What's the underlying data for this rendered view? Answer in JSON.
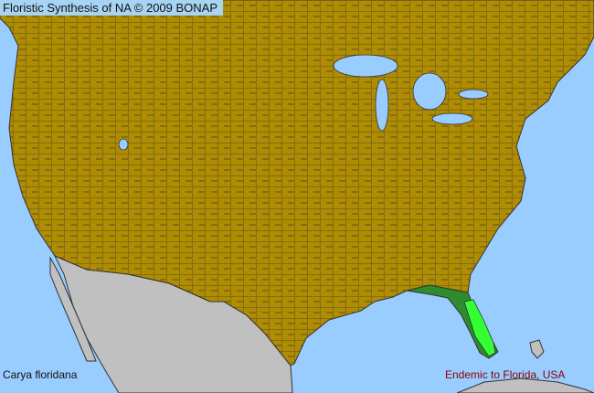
{
  "map": {
    "credit": "Floristic Synthesis of NA © 2009 BONAP",
    "species": "Carya floridana",
    "status": "Endemic to Florida, USA",
    "colors": {
      "ocean": "#99ccff",
      "land_absent": "#b08c00",
      "outside_region": "#c0c0c0",
      "state_present": "#2e8b2e",
      "county_present": "#33ff33",
      "borders": "#3a3a3a"
    }
  }
}
